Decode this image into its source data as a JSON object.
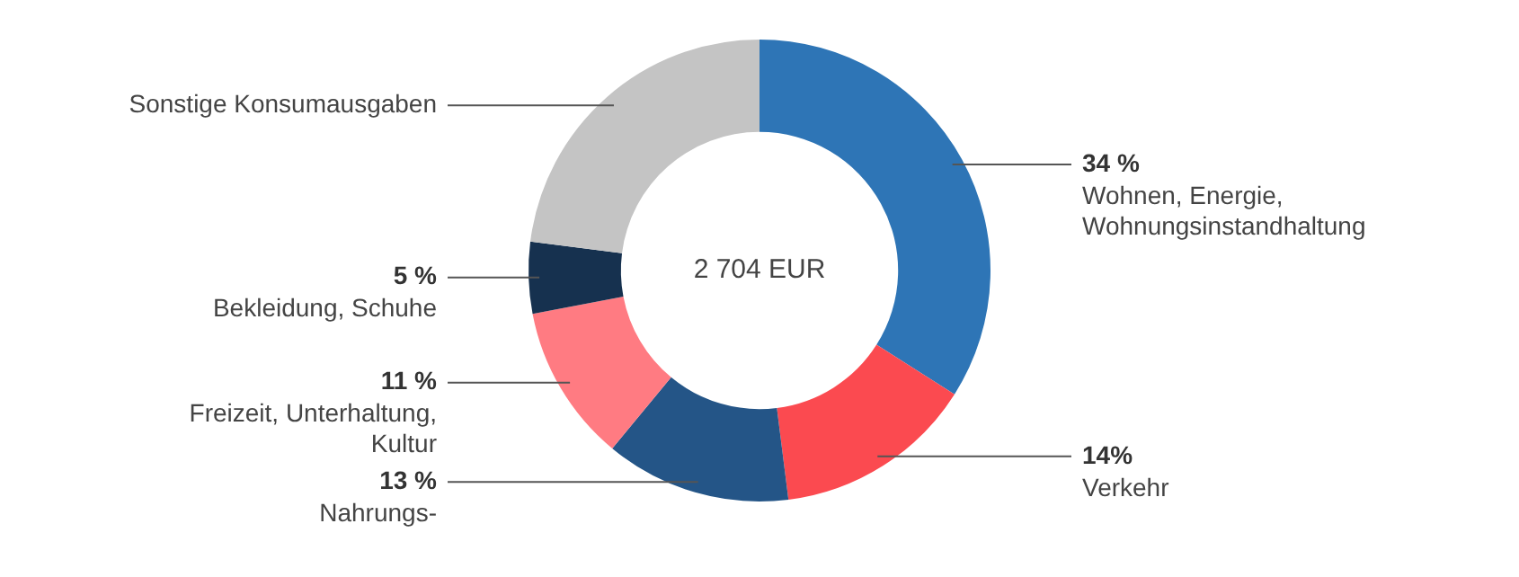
{
  "chart_data": {
    "type": "donut",
    "categories": [
      "Wohnen, Energie, Wohnungsinstandhaltung",
      "Verkehr",
      "Nahrungs-",
      "Freizeit, Unterhaltung, Kultur",
      "Bekleidung, Schuhe",
      "Sonstige Konsumausgaben"
    ],
    "values": [
      34,
      14,
      13,
      11,
      5,
      23
    ],
    "value_labels": [
      "34 %",
      "14%",
      "13 %",
      "11 %",
      "5 %",
      null
    ],
    "colors": [
      "#2e75b6",
      "#fb4a50",
      "#245587",
      "#ff7b82",
      "#16314f",
      "#c4c4c4"
    ],
    "annotations": [
      "2 704 EUR"
    ],
    "legend": false
  }
}
